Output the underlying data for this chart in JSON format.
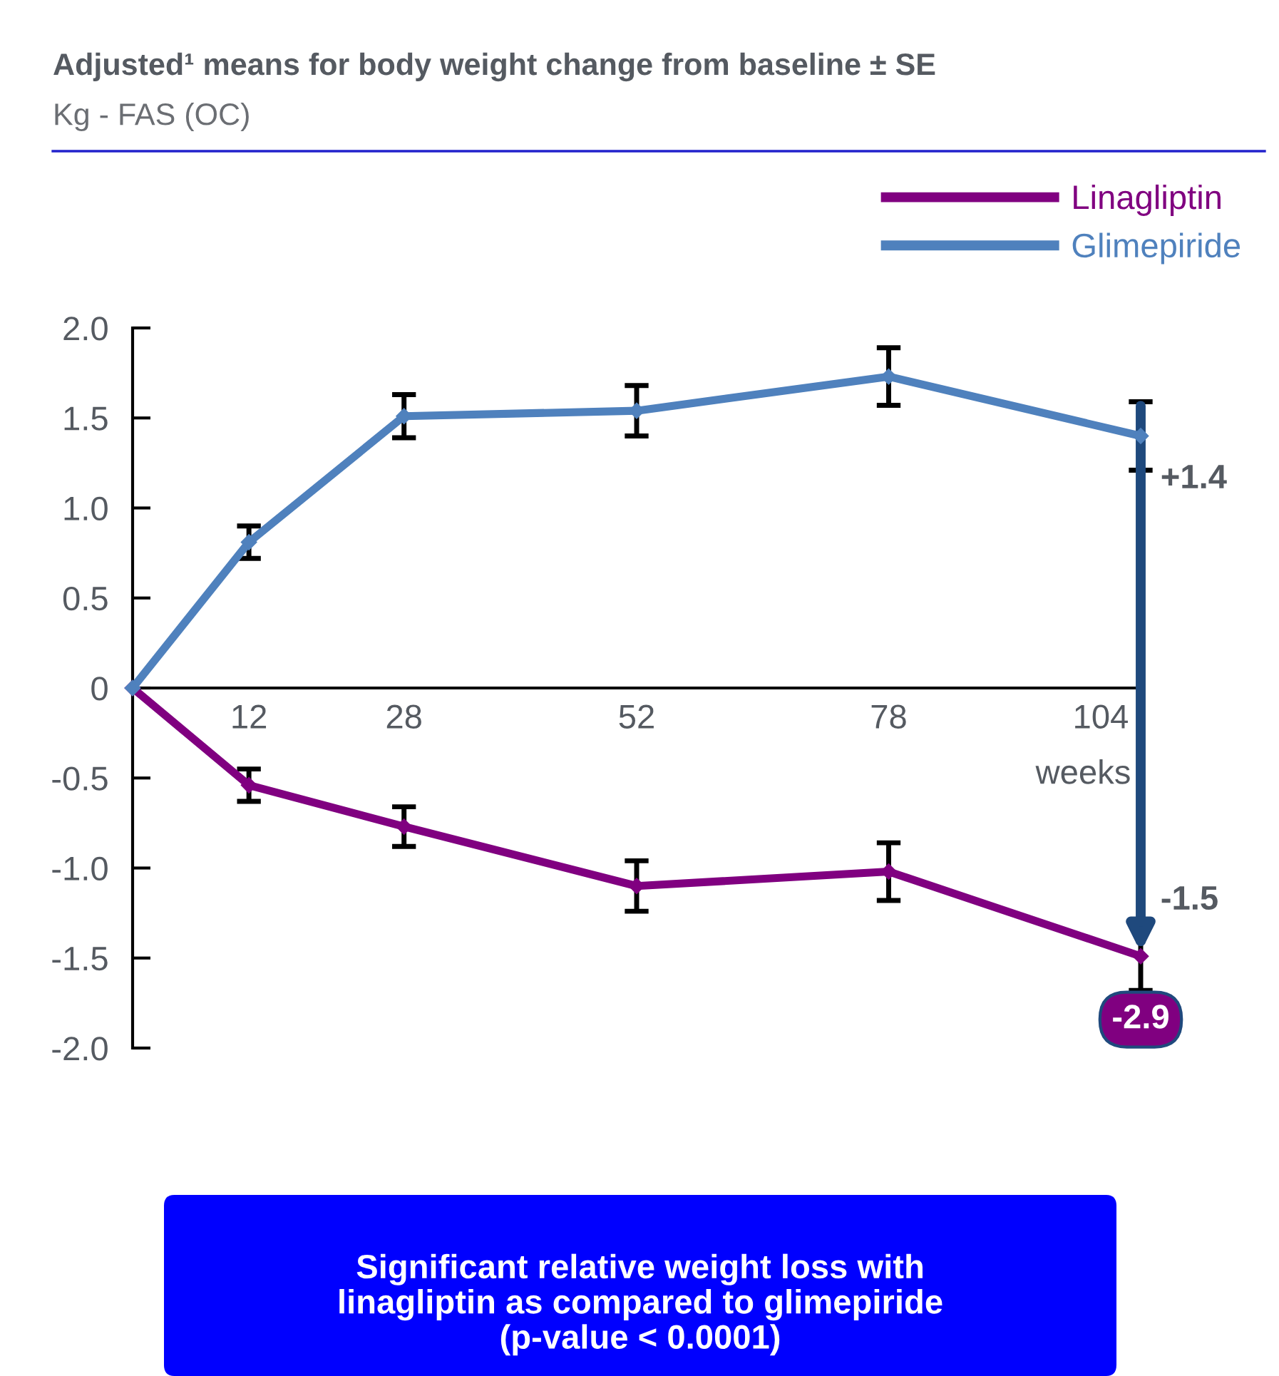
{
  "chart_data": {
    "type": "line",
    "title": "Adjusted¹ means for body weight change from baseline ± SE",
    "subtitle": "Kg - FAS (OC)",
    "xlabel": "weeks",
    "x": [
      0,
      12,
      28,
      52,
      78,
      104
    ],
    "series": [
      {
        "name": "Linagliptin",
        "color": "#800080",
        "values": [
          0,
          -0.54,
          -0.77,
          -1.1,
          -1.02,
          -1.49
        ],
        "errors": [
          null,
          0.09,
          0.11,
          0.14,
          0.16,
          0.19
        ]
      },
      {
        "name": "Glimepiride",
        "color": "#4f81bd",
        "values": [
          0,
          0.81,
          1.51,
          1.54,
          1.73,
          1.4
        ],
        "errors": [
          null,
          0.09,
          0.12,
          0.14,
          0.16,
          0.19
        ]
      }
    ],
    "xlim": [
      0,
      104
    ],
    "xticks": [
      12,
      28,
      52,
      78,
      104
    ],
    "ylim": [
      -2.0,
      2.0
    ],
    "yticks": [
      {
        "value": -2,
        "label": "-2.0"
      },
      {
        "value": -1.5,
        "label": "-1.5"
      },
      {
        "value": -1,
        "label": "-1.0"
      },
      {
        "value": -0.5,
        "label": "-0.5"
      },
      {
        "value": 0,
        "label": "0"
      },
      {
        "value": 0.5,
        "label": "0.5"
      },
      {
        "value": 1,
        "label": "1.0"
      },
      {
        "value": 1.5,
        "label": "1.5"
      },
      {
        "value": 2,
        "label": "2.0"
      }
    ],
    "marker": "diamond",
    "line_style": "solid",
    "grid": false,
    "legend": "top right",
    "annotations": [
      {
        "text": "+1.4",
        "x": 104,
        "y": 1.4
      },
      {
        "text": "-1.5",
        "x": 104,
        "y": -1.49
      },
      "-2.9",
      "Significant relative weight loss with\nlinagliptin as compared to glimepiride\n(p-value < 0.0001)"
    ]
  }
}
